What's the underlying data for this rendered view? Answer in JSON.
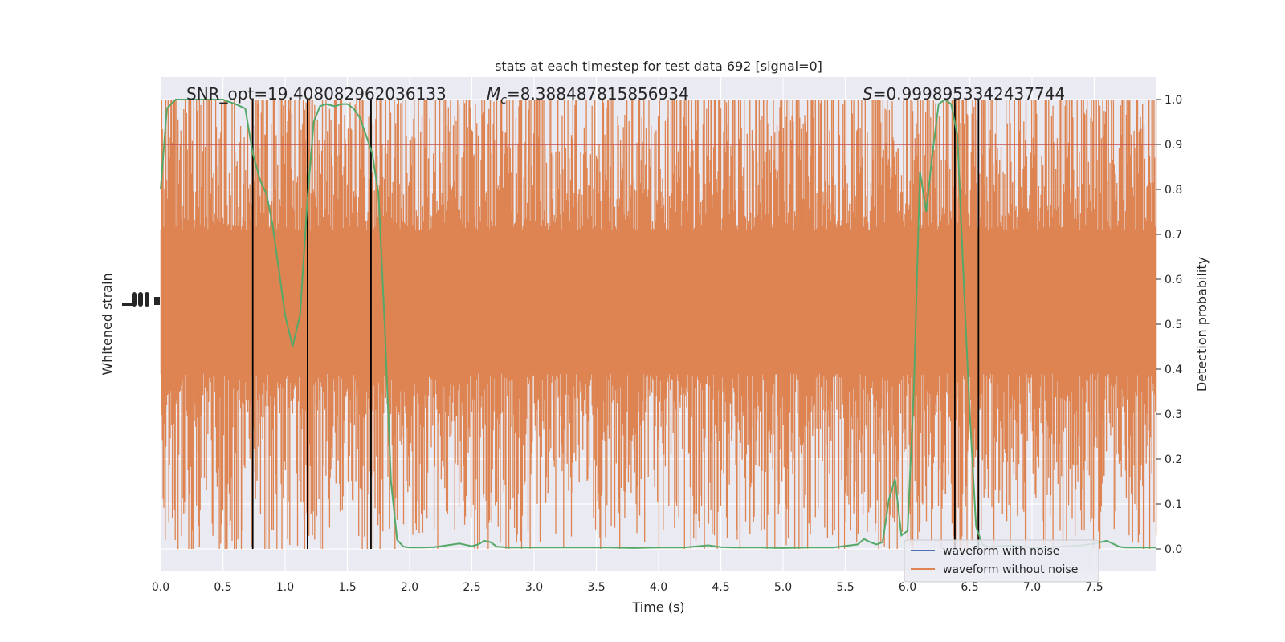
{
  "chart_data": {
    "type": "line",
    "title": "stats at each timestep for test data 692 [signal=0]",
    "xlabel": "Time (s)",
    "ylabel_left": "Whitened strain",
    "ylabel_right": "Detection probability",
    "xlim": [
      0,
      8
    ],
    "ylim_right": [
      -0.05,
      1.05
    ],
    "x_ticks": [
      "0.0",
      "0.5",
      "1.0",
      "1.5",
      "2.0",
      "2.5",
      "3.0",
      "3.5",
      "4.0",
      "4.5",
      "5.0",
      "5.5",
      "6.0",
      "6.5",
      "7.0",
      "7.5"
    ],
    "y_ticks_right": [
      "0.0",
      "0.1",
      "0.2",
      "0.3",
      "0.4",
      "0.5",
      "0.6",
      "0.7",
      "0.8",
      "0.9",
      "1.0"
    ],
    "grid": true,
    "legend_position": "lower-right",
    "annotations": {
      "snr": "SNR_opt=19.408082962036133",
      "mc_symbol": "M",
      "mc_sub": "c",
      "mc_value": "=8.388487815856934",
      "s_symbol": "S",
      "s_value": "=0.9998953342437744"
    },
    "threshold": {
      "y": 0.9,
      "color": "#c44e52"
    },
    "vertical_markers_x": [
      0.74,
      1.18,
      1.69,
      6.38,
      6.57
    ],
    "series": [
      {
        "name": "waveform with noise",
        "color": "#4c72b0",
        "values": []
      },
      {
        "name": "waveform without noise",
        "color": "#dd8452",
        "band_center": 0.55,
        "band_core_half_height": 0.16
      },
      {
        "color": "#55a868",
        "x": [
          0.0,
          0.05,
          0.12,
          0.2,
          0.3,
          0.4,
          0.5,
          0.6,
          0.68,
          0.74,
          0.8,
          0.85,
          0.9,
          0.95,
          1.0,
          1.06,
          1.12,
          1.18,
          1.23,
          1.28,
          1.33,
          1.4,
          1.45,
          1.5,
          1.55,
          1.6,
          1.65,
          1.7,
          1.75,
          1.8,
          1.85,
          1.9,
          1.95,
          2.0,
          2.1,
          2.2,
          2.3,
          2.4,
          2.5,
          2.55,
          2.6,
          2.65,
          2.7,
          2.75,
          2.8,
          2.9,
          3.0,
          3.2,
          3.4,
          3.6,
          3.8,
          4.0,
          4.2,
          4.4,
          4.5,
          4.6,
          4.8,
          5.0,
          5.2,
          5.4,
          5.6,
          5.65,
          5.7,
          5.75,
          5.8,
          5.85,
          5.9,
          5.95,
          6.0,
          6.05,
          6.1,
          6.15,
          6.2,
          6.25,
          6.3,
          6.35,
          6.4,
          6.45,
          6.5,
          6.55,
          6.6,
          6.65,
          6.7,
          6.75,
          6.8,
          6.85,
          6.9,
          7.0,
          7.1,
          7.2,
          7.3,
          7.4,
          7.5,
          7.6,
          7.7,
          7.75,
          7.8,
          7.9,
          8.0
        ],
        "y": [
          0.8,
          0.98,
          1.0,
          1.0,
          1.0,
          1.0,
          1.0,
          0.99,
          0.98,
          0.88,
          0.82,
          0.79,
          0.72,
          0.62,
          0.52,
          0.45,
          0.52,
          0.78,
          0.95,
          0.985,
          0.99,
          0.985,
          0.99,
          0.99,
          0.98,
          0.96,
          0.92,
          0.88,
          0.79,
          0.5,
          0.15,
          0.02,
          0.005,
          0.003,
          0.003,
          0.004,
          0.008,
          0.012,
          0.006,
          0.01,
          0.018,
          0.015,
          0.005,
          0.004,
          0.003,
          0.003,
          0.003,
          0.003,
          0.003,
          0.003,
          0.002,
          0.003,
          0.003,
          0.008,
          0.004,
          0.003,
          0.003,
          0.002,
          0.003,
          0.003,
          0.01,
          0.022,
          0.015,
          0.01,
          0.015,
          0.11,
          0.155,
          0.03,
          0.04,
          0.35,
          0.84,
          0.75,
          0.88,
          0.99,
          1.0,
          0.99,
          0.92,
          0.6,
          0.3,
          0.05,
          0.01,
          0.005,
          0.005,
          0.007,
          0.007,
          0.008,
          0.006,
          0.003,
          0.003,
          0.005,
          0.006,
          0.008,
          0.012,
          0.018,
          0.005,
          0.003,
          0.003,
          0.003,
          0.003
        ]
      }
    ]
  }
}
